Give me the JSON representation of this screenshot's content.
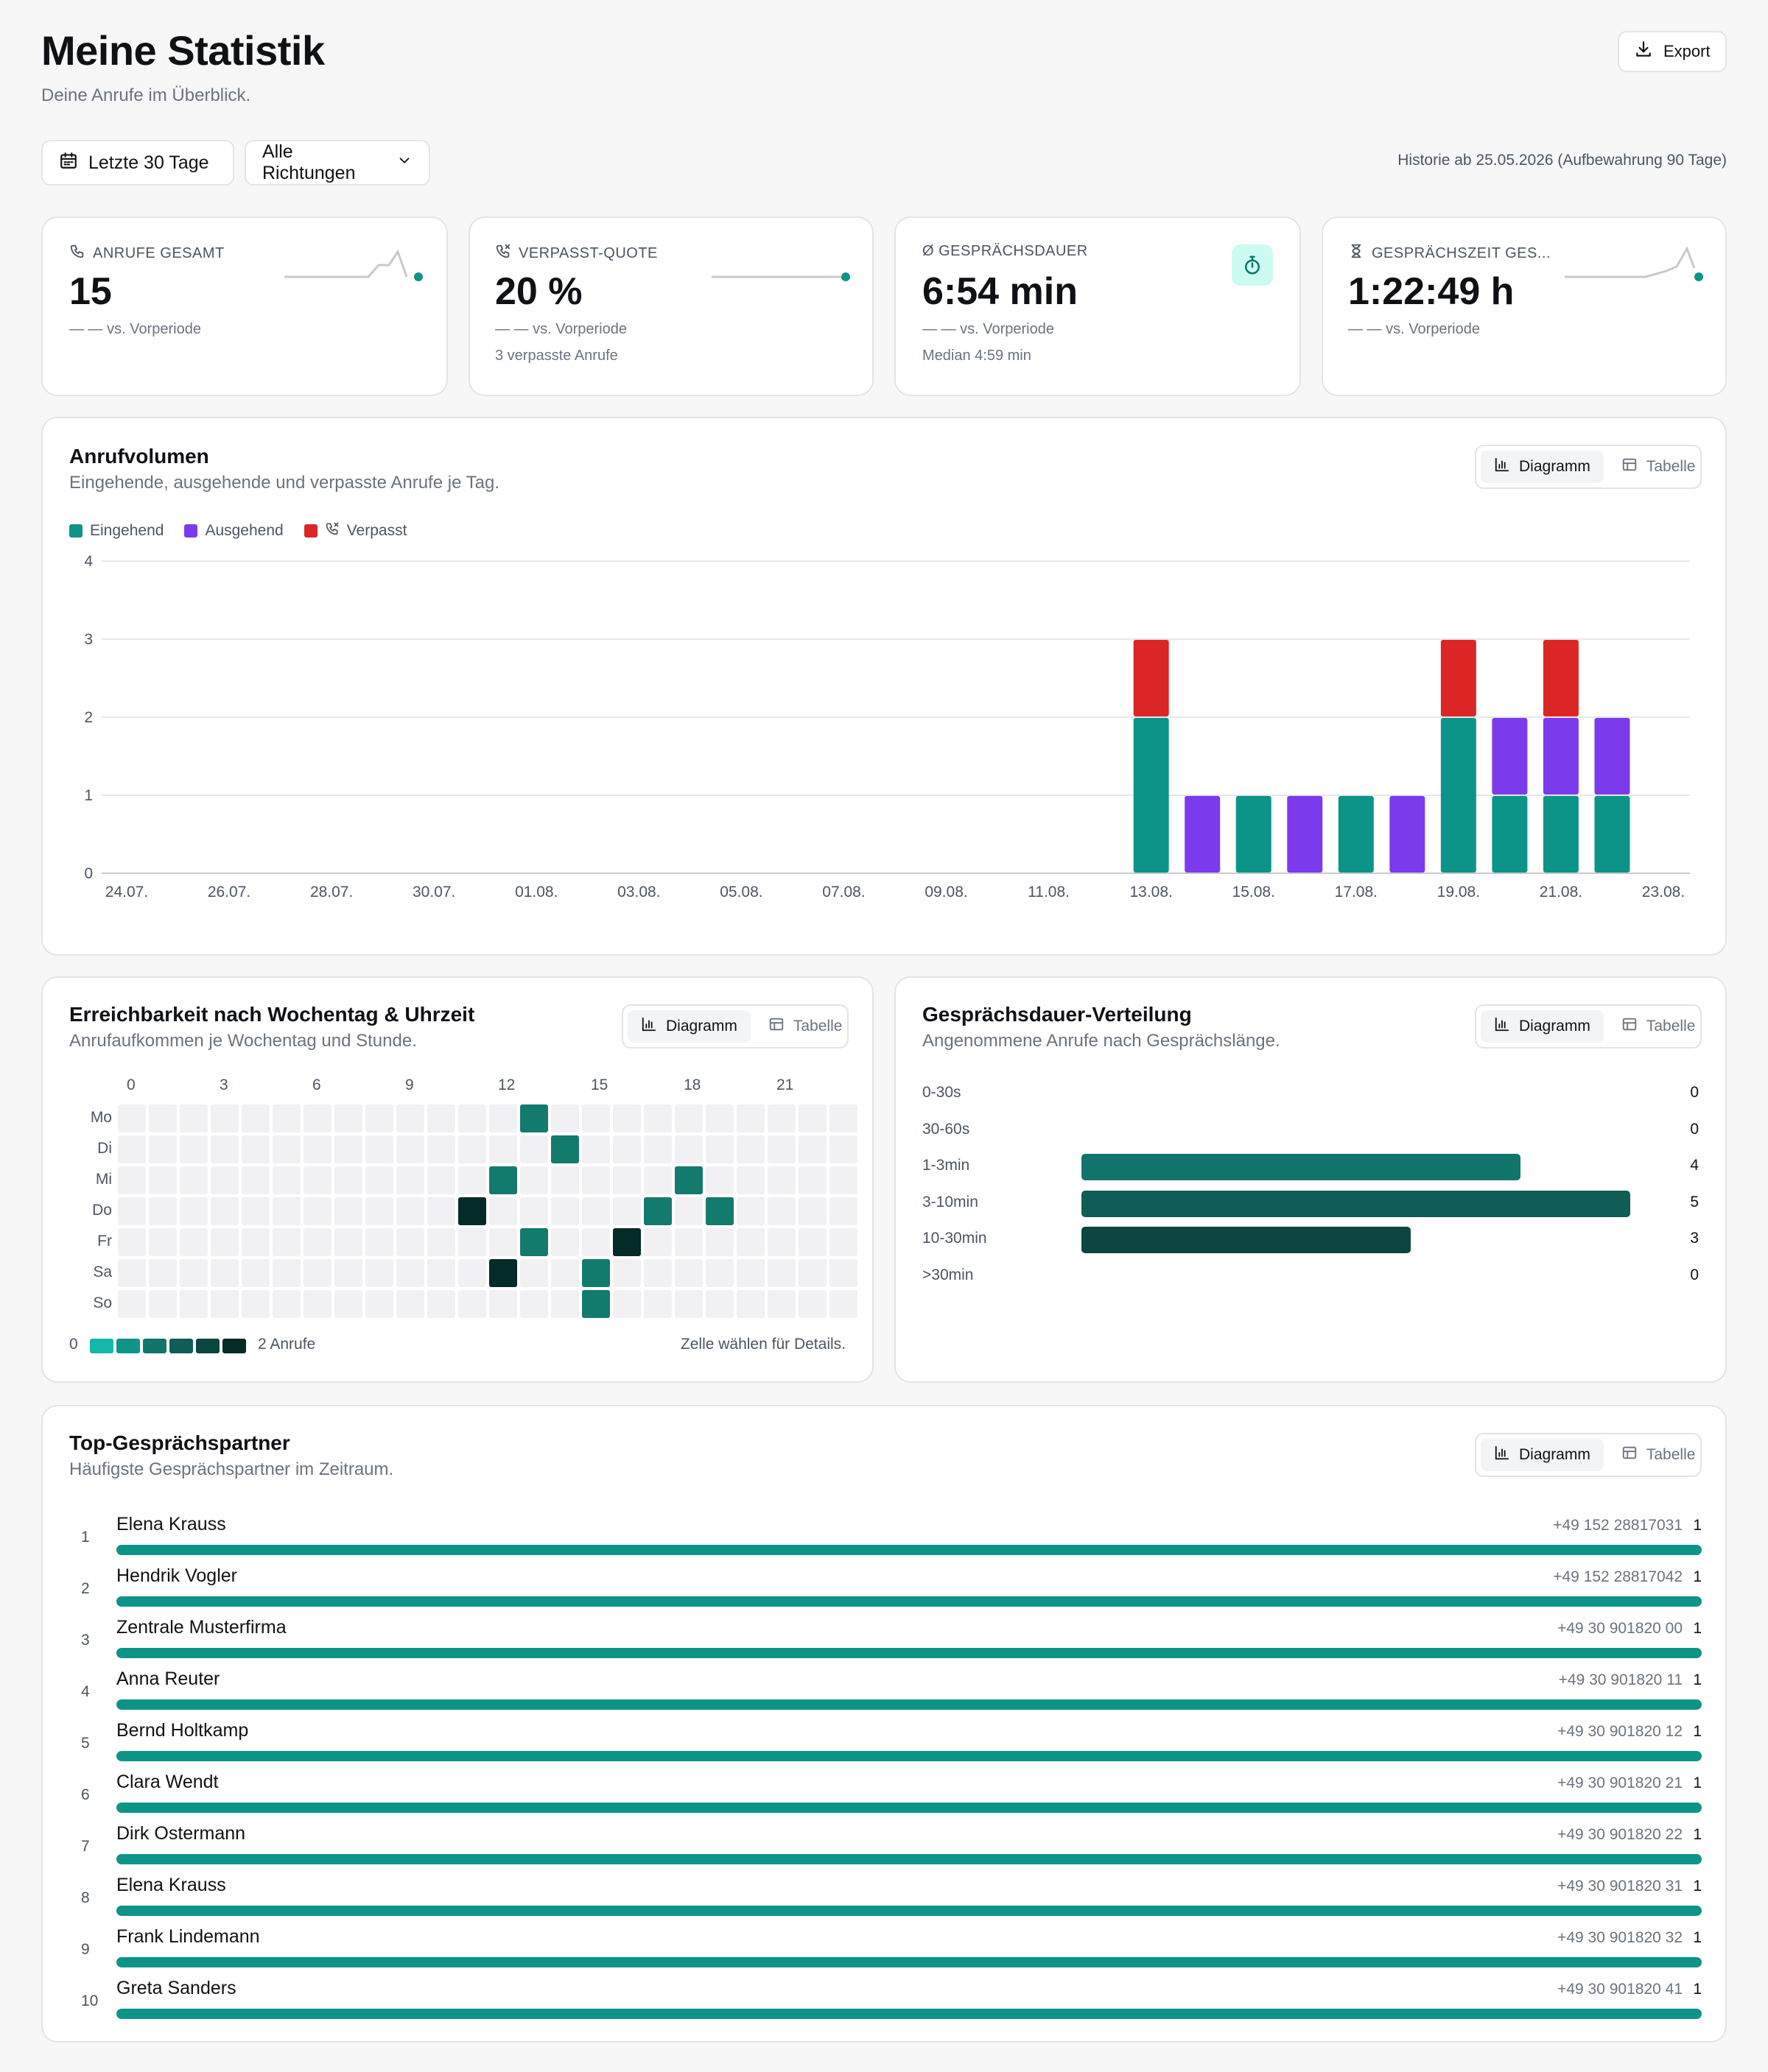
{
  "header": {
    "title": "Meine Statistik",
    "subtitle": "Deine Anrufe im Überblick.",
    "export_label": "Export"
  },
  "filters": {
    "range_label": "Letzte 30 Tage",
    "direction_label": "Alle Richtungen",
    "history_note": "Historie ab 25.05.2026 (Aufbewahrung 90 Tage)"
  },
  "kpis": [
    {
      "label": "ANRUFE GESAMT",
      "icon": "phone-icon",
      "value": "15",
      "delta": "— — vs. Vorperiode",
      "extra": ""
    },
    {
      "label": "VERPASST-QUOTE",
      "icon": "missed-call-icon",
      "value": "20 %",
      "delta": "— — vs. Vorperiode",
      "extra": "3 verpasste Anrufe"
    },
    {
      "label": "Ø GESPRÄCHSDAUER",
      "icon": "",
      "value": "6:54 min",
      "delta": "— — vs. Vorperiode",
      "extra": "Median 4:59 min"
    },
    {
      "label": "GESPRÄCHSZEIT GES...",
      "icon": "hourglass-icon",
      "value": "1:22:49 h",
      "delta": "— — vs. Vorperiode",
      "extra": ""
    }
  ],
  "toggle": {
    "chart": "Diagramm",
    "table": "Tabelle"
  },
  "volume": {
    "title": "Anrufvolumen",
    "subtitle": "Eingehende, ausgehende und verpasste Anrufe je Tag.",
    "legend": [
      "Eingehend",
      "Ausgehend",
      "Verpasst"
    ]
  },
  "heatmap": {
    "title": "Erreichbarkeit nach Wochentag & Uhrzeit",
    "subtitle": "Anrufaufkommen je Wochentag und Stunde.",
    "days": [
      "Mo",
      "Di",
      "Mi",
      "Do",
      "Fr",
      "Sa",
      "So"
    ],
    "hour_ticks": [
      "0",
      "3",
      "6",
      "9",
      "12",
      "15",
      "18",
      "21"
    ],
    "cells": [
      {
        "day": 0,
        "hour": 13,
        "count": 1
      },
      {
        "day": 1,
        "hour": 14,
        "count": 1
      },
      {
        "day": 2,
        "hour": 12,
        "count": 1
      },
      {
        "day": 2,
        "hour": 18,
        "count": 1
      },
      {
        "day": 3,
        "hour": 11,
        "count": 2
      },
      {
        "day": 3,
        "hour": 17,
        "count": 1
      },
      {
        "day": 3,
        "hour": 19,
        "count": 1
      },
      {
        "day": 4,
        "hour": 13,
        "count": 1
      },
      {
        "day": 4,
        "hour": 16,
        "count": 2
      },
      {
        "day": 5,
        "hour": 12,
        "count": 2
      },
      {
        "day": 5,
        "hour": 15,
        "count": 1
      },
      {
        "day": 6,
        "hour": 15,
        "count": 1
      }
    ],
    "scale_min": "0",
    "scale_max": "2 Anrufe",
    "hint": "Zelle wählen für Details."
  },
  "distribution": {
    "title": "Gesprächsdauer-Verteilung",
    "subtitle": "Angenommene Anrufe nach Gesprächslänge.",
    "buckets": [
      {
        "label": "0-30s",
        "value": 0,
        "display": "0",
        "color": "#0f766e"
      },
      {
        "label": "30-60s",
        "value": 0,
        "display": "0",
        "color": "#0f766e"
      },
      {
        "label": "1-3min",
        "value": 4,
        "display": "4",
        "color": "#11756d"
      },
      {
        "label": "3-10min",
        "value": 5,
        "display": "5",
        "color": "#0f5d57"
      },
      {
        "label": "10-30min",
        "value": 3,
        "display": "3",
        "color": "#0b4640"
      },
      {
        "label": ">30min",
        "value": 0,
        "display": "0",
        "color": "#0f766e"
      }
    ]
  },
  "partners": {
    "title": "Top-Gesprächspartner",
    "subtitle": "Häufigste Gesprächspartner im Zeitraum.",
    "rows": [
      {
        "rank": "1",
        "name": "Elena Krauss",
        "phone": "+49 152 28817031",
        "count": "1"
      },
      {
        "rank": "2",
        "name": "Hendrik Vogler",
        "phone": "+49 152 28817042",
        "count": "1"
      },
      {
        "rank": "3",
        "name": "Zentrale Musterfirma",
        "phone": "+49 30 901820 00",
        "count": "1"
      },
      {
        "rank": "4",
        "name": "Anna Reuter",
        "phone": "+49 30 901820 11",
        "count": "1"
      },
      {
        "rank": "5",
        "name": "Bernd Holtkamp",
        "phone": "+49 30 901820 12",
        "count": "1"
      },
      {
        "rank": "6",
        "name": "Clara Wendt",
        "phone": "+49 30 901820 21",
        "count": "1"
      },
      {
        "rank": "7",
        "name": "Dirk Ostermann",
        "phone": "+49 30 901820 22",
        "count": "1"
      },
      {
        "rank": "8",
        "name": "Elena Krauss",
        "phone": "+49 30 901820 31",
        "count": "1"
      },
      {
        "rank": "9",
        "name": "Frank Lindemann",
        "phone": "+49 30 901820 32",
        "count": "1"
      },
      {
        "rank": "10",
        "name": "Greta Sanders",
        "phone": "+49 30 901820 41",
        "count": "1"
      }
    ]
  },
  "colors": {
    "incoming": "#0d9488",
    "outgoing": "#7c3aed",
    "missed": "#dc2626",
    "accent": "#0d9488",
    "grid": "#e5e7eb",
    "heat_empty": "#f1f1f3",
    "heat_1": "#137a6e",
    "heat_2": "#052b29"
  },
  "chart_data": {
    "type": "bar",
    "stacked": true,
    "x_ticks": [
      "24.07.",
      "26.07.",
      "28.07.",
      "30.07.",
      "01.08.",
      "03.08.",
      "05.08.",
      "07.08.",
      "09.08.",
      "11.08.",
      "13.08.",
      "15.08.",
      "17.08.",
      "19.08.",
      "21.08.",
      "23.08."
    ],
    "categories": [
      "24.07.",
      "25.07.",
      "26.07.",
      "27.07.",
      "28.07.",
      "29.07.",
      "30.07.",
      "31.07.",
      "01.08.",
      "02.08.",
      "03.08.",
      "04.08.",
      "05.08.",
      "06.08.",
      "07.08.",
      "08.08.",
      "09.08.",
      "10.08.",
      "11.08.",
      "12.08.",
      "13.08.",
      "14.08.",
      "15.08.",
      "16.08.",
      "17.08.",
      "18.08.",
      "19.08.",
      "20.08.",
      "21.08.",
      "22.08.",
      "23.08."
    ],
    "series": [
      {
        "name": "Eingehend",
        "values": [
          0,
          0,
          0,
          0,
          0,
          0,
          0,
          0,
          0,
          0,
          0,
          0,
          0,
          0,
          0,
          0,
          0,
          0,
          0,
          0,
          2,
          0,
          1,
          0,
          1,
          0,
          2,
          1,
          1,
          1,
          0
        ]
      },
      {
        "name": "Ausgehend",
        "values": [
          0,
          0,
          0,
          0,
          0,
          0,
          0,
          0,
          0,
          0,
          0,
          0,
          0,
          0,
          0,
          0,
          0,
          0,
          0,
          0,
          0,
          1,
          0,
          1,
          0,
          1,
          0,
          1,
          1,
          1,
          0
        ]
      },
      {
        "name": "Verpasst",
        "values": [
          0,
          0,
          0,
          0,
          0,
          0,
          0,
          0,
          0,
          0,
          0,
          0,
          0,
          0,
          0,
          0,
          0,
          0,
          0,
          0,
          1,
          0,
          0,
          0,
          0,
          0,
          1,
          0,
          1,
          0,
          0
        ]
      }
    ],
    "ylim": [
      0,
      4
    ],
    "y_ticks": [
      "0",
      "1",
      "2",
      "3",
      "4"
    ],
    "legend": "top-left",
    "grid": true
  }
}
